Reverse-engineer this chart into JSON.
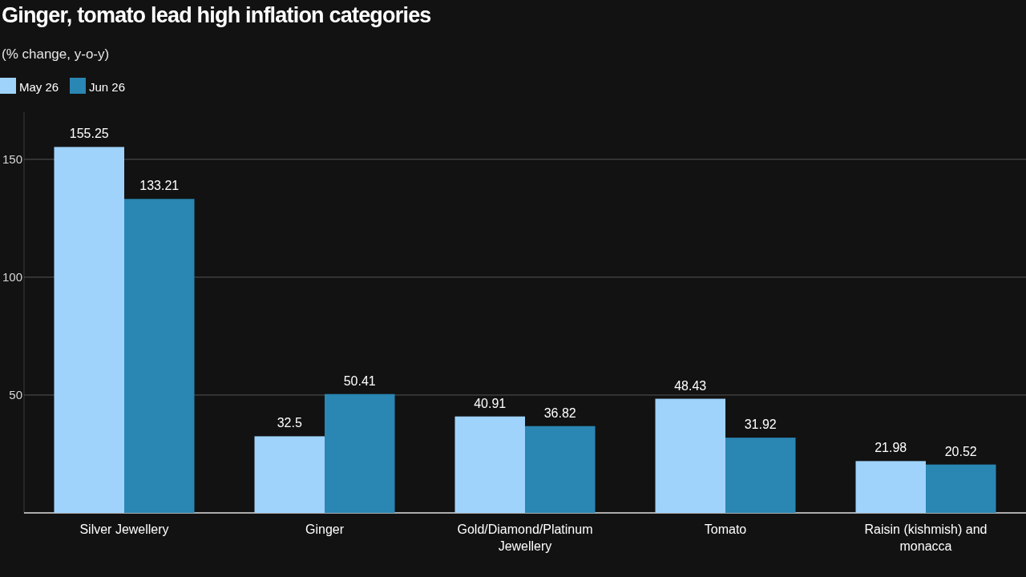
{
  "chart_data": {
    "type": "bar",
    "title": "Ginger, tomato lead high inflation categories",
    "subtitle": "(% change, y-o-y)",
    "categories": [
      "Silver Jewellery",
      "Ginger",
      "Gold/Diamond/Platinum Jewellery",
      "Tomato",
      "Raisin (kishmish) and monacca"
    ],
    "series": [
      {
        "name": "May 26",
        "color": "#9fd3fb",
        "values": [
          155.25,
          32.5,
          40.91,
          48.43,
          21.98
        ]
      },
      {
        "name": "Jun 26",
        "color": "#2a86b3",
        "values": [
          133.21,
          50.41,
          36.82,
          31.92,
          20.52
        ]
      }
    ],
    "ylim": [
      0,
      170
    ],
    "yticks": [
      {
        "value": 0,
        "label": null
      },
      50,
      100,
      150
    ],
    "grid": "y",
    "legend": "top left",
    "data_labels": true
  }
}
